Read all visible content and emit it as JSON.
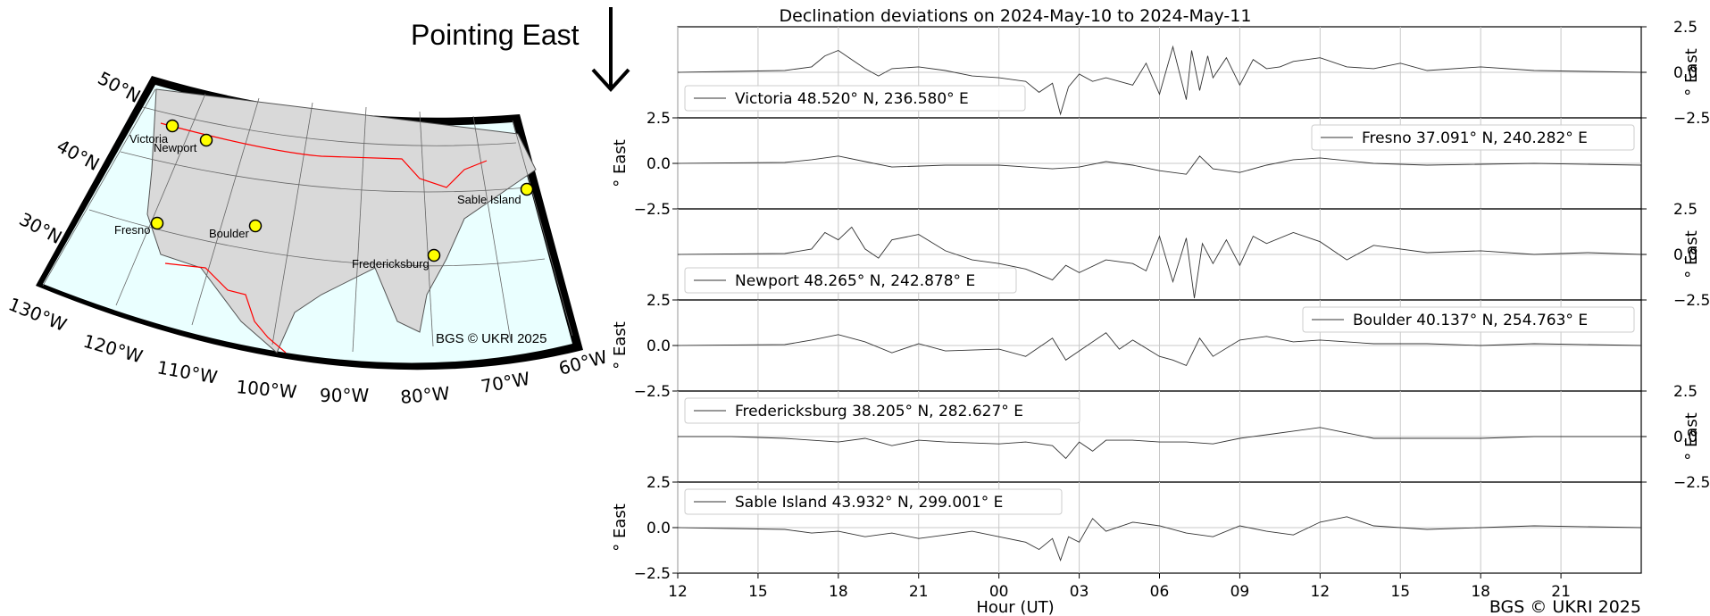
{
  "map": {
    "arrow_label": "Pointing East",
    "copyright": "BGS © UKRI 2025",
    "lat_labels": [
      "50°N",
      "40°N",
      "30°N"
    ],
    "lon_labels": [
      "130°W",
      "120°W",
      "110°W",
      "100°W",
      "90°W",
      "80°W",
      "70°W",
      "60°W"
    ],
    "stations": [
      {
        "name": "Victoria",
        "lat": 48.52,
        "lon": -123.42
      },
      {
        "name": "Newport",
        "lat": 48.265,
        "lon": -117.122
      },
      {
        "name": "Fresno",
        "lat": 37.091,
        "lon": -119.718
      },
      {
        "name": "Boulder",
        "lat": 40.137,
        "lon": -105.237
      },
      {
        "name": "Fredericksburg",
        "lat": 38.205,
        "lon": -77.373
      },
      {
        "name": "Sable Island",
        "lat": 43.932,
        "lon": -60.999
      }
    ],
    "colors": {
      "ocean": "#eaffff",
      "land": "#d9d9d9",
      "border": "#ff0000",
      "marker": "#ffff00"
    }
  },
  "chart_data": {
    "type": "line",
    "title": "Declination deviations on 2024-May-10 to 2024-May-11",
    "xlabel": "Hour (UT)",
    "ylabel": "° East",
    "x_tick_labels": [
      "12",
      "15",
      "18",
      "21",
      "00",
      "03",
      "06",
      "09",
      "12",
      "15",
      "18",
      "21"
    ],
    "x_range_hours": [
      12,
      48
    ],
    "ylim": [
      -2.5,
      2.5
    ],
    "y_tick_labels": [
      "2.5",
      "0.0",
      "−2.5"
    ],
    "grid": true,
    "credit": "BGS © UKRI 2025",
    "series": [
      {
        "name": "Victoria 48.520° N, 236.580° E",
        "legend_position": "lower-left",
        "axis_side": "right",
        "x_hours": [
          12,
          14,
          16,
          17,
          17.5,
          18,
          18.5,
          19,
          19.5,
          20,
          21,
          22,
          23,
          24,
          25,
          25.5,
          26,
          26.3,
          26.6,
          27,
          27.5,
          28,
          29,
          29.5,
          30,
          30.5,
          31,
          31.2,
          31.5,
          31.8,
          32,
          32.5,
          33,
          33.5,
          34,
          34.5,
          35,
          36,
          37,
          38,
          39,
          40,
          42,
          44,
          46,
          48
        ],
        "values": [
          0,
          0.05,
          0.1,
          0.3,
          0.9,
          1.2,
          0.7,
          0.2,
          -0.2,
          0.2,
          0.3,
          0.1,
          -0.2,
          -0.3,
          -0.5,
          -1.1,
          -0.6,
          -2.3,
          -0.8,
          -0.1,
          -0.5,
          -0.3,
          -0.7,
          0.5,
          -1.2,
          1.4,
          -1.5,
          1.2,
          -1.0,
          0.9,
          -0.3,
          0.8,
          -0.7,
          0.7,
          0.2,
          0.3,
          0.6,
          0.8,
          0.3,
          0.2,
          0.5,
          0.1,
          0.3,
          0.1,
          0.05,
          0
        ]
      },
      {
        "name": "Fresno 37.091° N, 240.282° E",
        "legend_position": "upper-right",
        "axis_side": "left",
        "x_hours": [
          12,
          16,
          17,
          18,
          19,
          20,
          22,
          24,
          26,
          27,
          28,
          29,
          30,
          31,
          31.5,
          32,
          33,
          34,
          35,
          36,
          38,
          40,
          44,
          48
        ],
        "values": [
          0,
          0.05,
          0.2,
          0.4,
          0.1,
          -0.2,
          -0.1,
          -0.1,
          -0.3,
          -0.2,
          0.1,
          -0.1,
          -0.4,
          -0.6,
          0.4,
          -0.3,
          -0.5,
          -0.1,
          0.2,
          0.3,
          0,
          -0.1,
          0,
          -0.1
        ]
      },
      {
        "name": "Newport 48.265° N, 242.878° E",
        "legend_position": "lower-left",
        "axis_side": "right",
        "x_hours": [
          12,
          16,
          17,
          17.5,
          18,
          18.5,
          19,
          19.5,
          20,
          21,
          22,
          23,
          24,
          25,
          26,
          26.5,
          27,
          28,
          29,
          29.5,
          30,
          30.5,
          31,
          31.3,
          31.6,
          32,
          32.5,
          33,
          33.5,
          34,
          35,
          36,
          37,
          38,
          40,
          42,
          44,
          46,
          48
        ],
        "values": [
          0,
          0.05,
          0.3,
          1.2,
          0.8,
          1.5,
          0.3,
          -0.2,
          0.8,
          1.1,
          0.2,
          -0.3,
          -0.5,
          -0.8,
          -1.4,
          -0.6,
          -1.0,
          -0.3,
          -0.5,
          -0.9,
          1.0,
          -1.5,
          0.9,
          -2.4,
          0.6,
          -0.5,
          0.8,
          -0.6,
          1.0,
          0.6,
          1.2,
          0.7,
          -0.3,
          0.5,
          0.1,
          0.2,
          0,
          0.1,
          0
        ]
      },
      {
        "name": "Boulder 40.137° N, 254.763° E",
        "legend_position": "upper-right",
        "axis_side": "left",
        "x_hours": [
          12,
          16,
          17,
          18,
          19,
          20,
          21,
          22,
          24,
          25,
          26,
          26.5,
          27,
          28,
          28.5,
          29,
          30,
          30.5,
          31,
          31.5,
          32,
          33,
          34,
          35,
          36,
          38,
          40,
          42,
          44,
          48
        ],
        "values": [
          0,
          0.05,
          0.3,
          0.6,
          0.2,
          -0.4,
          0.1,
          -0.3,
          -0.2,
          -0.6,
          0.4,
          -0.8,
          -0.3,
          0.7,
          -0.2,
          0.3,
          -0.6,
          -0.8,
          -1.1,
          0.4,
          -0.6,
          0.3,
          0.5,
          0.2,
          0.3,
          0.1,
          0.1,
          0,
          0.1,
          0
        ]
      },
      {
        "name": "Fredericksburg 38.205° N, 282.627° E",
        "legend_position": "upper-left",
        "axis_side": "right",
        "x_hours": [
          12,
          14,
          16,
          17,
          18,
          19,
          20,
          21,
          22,
          24,
          25,
          26,
          26.5,
          27,
          27.5,
          28,
          29,
          30,
          31,
          32,
          33,
          34,
          35,
          36,
          37,
          38,
          40,
          42,
          44,
          48
        ],
        "values": [
          0,
          0,
          -0.1,
          -0.2,
          -0.3,
          -0.1,
          -0.5,
          -0.2,
          -0.3,
          -0.4,
          -0.3,
          -0.5,
          -1.2,
          -0.3,
          -0.8,
          -0.2,
          -0.2,
          -0.3,
          -0.3,
          -0.4,
          -0.1,
          0.1,
          0.3,
          0.5,
          0.2,
          -0.1,
          -0.1,
          -0.1,
          0,
          0
        ]
      },
      {
        "name": "Sable Island 43.932° N, 299.001° E",
        "legend_position": "upper-left",
        "axis_side": "left",
        "x_hours": [
          12,
          14,
          16,
          17,
          18,
          19,
          20,
          21,
          22,
          23,
          24,
          25,
          25.5,
          26,
          26.3,
          26.6,
          27,
          27.5,
          28,
          29,
          30,
          31,
          32,
          33,
          34,
          35,
          36,
          37,
          38,
          40,
          42,
          44,
          48
        ],
        "values": [
          0,
          -0.05,
          -0.1,
          -0.3,
          -0.2,
          -0.5,
          -0.3,
          -0.6,
          -0.4,
          -0.2,
          -0.5,
          -0.8,
          -1.2,
          -0.6,
          -1.8,
          -0.5,
          -0.8,
          0.5,
          -0.2,
          0.3,
          0.1,
          -0.3,
          -0.5,
          0.1,
          -0.2,
          -0.4,
          0.3,
          0.6,
          0.1,
          -0.1,
          0,
          0.1,
          0
        ]
      }
    ]
  }
}
